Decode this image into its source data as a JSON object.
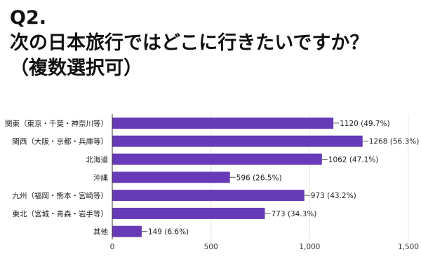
{
  "title": {
    "line1": "Q2.",
    "line2": "次の日本旅行ではどこに行きたいですか？",
    "line3": "（複数選択可）"
  },
  "chart_data": {
    "type": "bar",
    "orientation": "horizontal",
    "categories": [
      "関東（東京・千葉・神奈川等）",
      "関西（大阪・京都・兵庫等）",
      "北海道",
      "沖縄",
      "九州（福岡・熊本・宮崎等）",
      "東北（宮城・青森・岩手等）",
      "其他"
    ],
    "values": [
      1120,
      1268,
      1062,
      596,
      973,
      773,
      149
    ],
    "data_labels": [
      "1120 (49.7%)",
      "1268 (56.3%)",
      "1062 (47.1%)",
      "596 (26.5%)",
      "973 (43.2%)",
      "773 (34.3%)",
      "149 (6.6%)"
    ],
    "xlim": [
      0,
      1500
    ],
    "xticks": [
      0,
      500,
      1000,
      1500
    ],
    "xtick_labels": [
      "0",
      "500",
      "1,000",
      "1,500"
    ],
    "grid": true,
    "colors": {
      "bar": "#673ab7",
      "grid": "#e4e4e4",
      "axis": "#333333"
    }
  }
}
